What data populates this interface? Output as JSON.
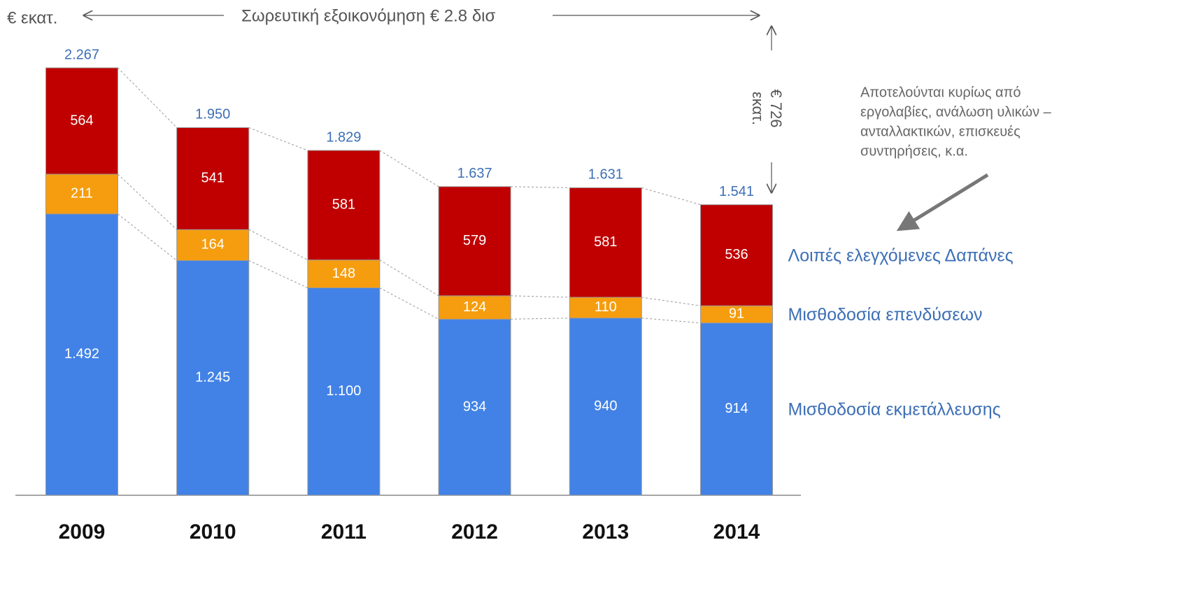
{
  "chart_data": {
    "type": "stacked_bar",
    "categories": [
      "2009",
      "2010",
      "2011",
      "2012",
      "2013",
      "2014"
    ],
    "series": [
      {
        "name": "Μισθοδοσία εκμετάλλευσης",
        "color": "#4282e6",
        "values": [
          1492,
          1245,
          1100,
          934,
          940,
          914
        ],
        "value_labels": [
          "1.492",
          "1.245",
          "1.100",
          "934",
          "940",
          "914"
        ]
      },
      {
        "name": "Μισθοδοσία επενδύσεων",
        "color": "#f59d0e",
        "values": [
          211,
          164,
          148,
          124,
          110,
          91
        ]
      },
      {
        "name": "Λοιπές ελεγχόμενες Δαπάνες",
        "color": "#c00000",
        "values": [
          564,
          541,
          581,
          579,
          581,
          536
        ]
      }
    ],
    "totals": {
      "values": [
        2267,
        1950,
        1829,
        1637,
        1631,
        1541
      ],
      "value_labels": [
        "2.267",
        "1.950",
        "1.829",
        "1.637",
        "1.631",
        "1.541"
      ]
    },
    "unit_label": "€ εκατ.",
    "savings_label": "Σωρευτική εξοικονόμηση € 2.8 δισ",
    "difference_label": [
      "€ 726",
      "εκατ."
    ],
    "note": [
      "Αποτελούνται κυρίως από",
      "εργολαβίες, ανάλωση υλικών –",
      "ανταλλακτικών, επισκευές",
      "συντηρήσεις, κ.α."
    ]
  }
}
